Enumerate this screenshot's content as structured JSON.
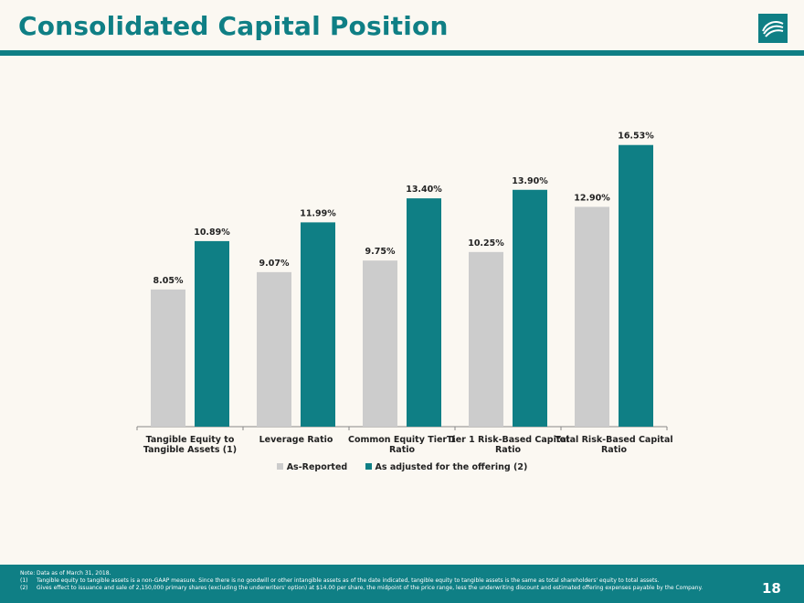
{
  "header": {
    "title": "Consolidated Capital Position",
    "logo_icon": "wave-logo-icon"
  },
  "colors": {
    "brand": "#0f7f85",
    "as_reported": "#cccccc",
    "as_adjusted": "#0f7f85",
    "background": "#fbf8f2"
  },
  "chart_data": {
    "type": "bar",
    "categories": [
      [
        "Tangible Equity to",
        "Tangible Assets (1)"
      ],
      [
        "Leverage Ratio"
      ],
      [
        "Common Equity Tier 1",
        "Ratio"
      ],
      [
        "Tier 1 Risk-Based Capital",
        "Ratio"
      ],
      [
        "Total Risk-Based Capital",
        "Ratio"
      ]
    ],
    "series": [
      {
        "name": "As-Reported",
        "values": [
          8.05,
          9.07,
          9.75,
          10.25,
          12.9
        ],
        "labels": [
          "8.05%",
          "9.07%",
          "9.75%",
          "10.25%",
          "12.90%"
        ]
      },
      {
        "name": "As adjusted for the offering (2)",
        "values": [
          10.89,
          11.99,
          13.4,
          13.9,
          16.53
        ],
        "labels": [
          "10.89%",
          "11.99%",
          "13.40%",
          "13.90%",
          "16.53%"
        ]
      }
    ],
    "ylim": [
      0,
      18
    ],
    "grid": false,
    "legend_position": "bottom-center"
  },
  "footer": {
    "notes": [
      {
        "mark": "Note:",
        "text": "Data as of March 31, 2018."
      },
      {
        "mark": "(1)",
        "text": "Tangible equity to tangible assets is a non-GAAP measure. Since there is no goodwill or other intangible assets as of the date indicated, tangible equity to tangible assets is the same as total shareholders' equity to total assets."
      },
      {
        "mark": "(2)",
        "text": "Gives effect to issuance and sale of 2,150,000 primary shares (excluding the underwriters' option) at $14.00 per share, the midpoint of the price range, less the underwriting discount and estimated offering expenses payable by the Company."
      }
    ],
    "page_number": "18"
  }
}
